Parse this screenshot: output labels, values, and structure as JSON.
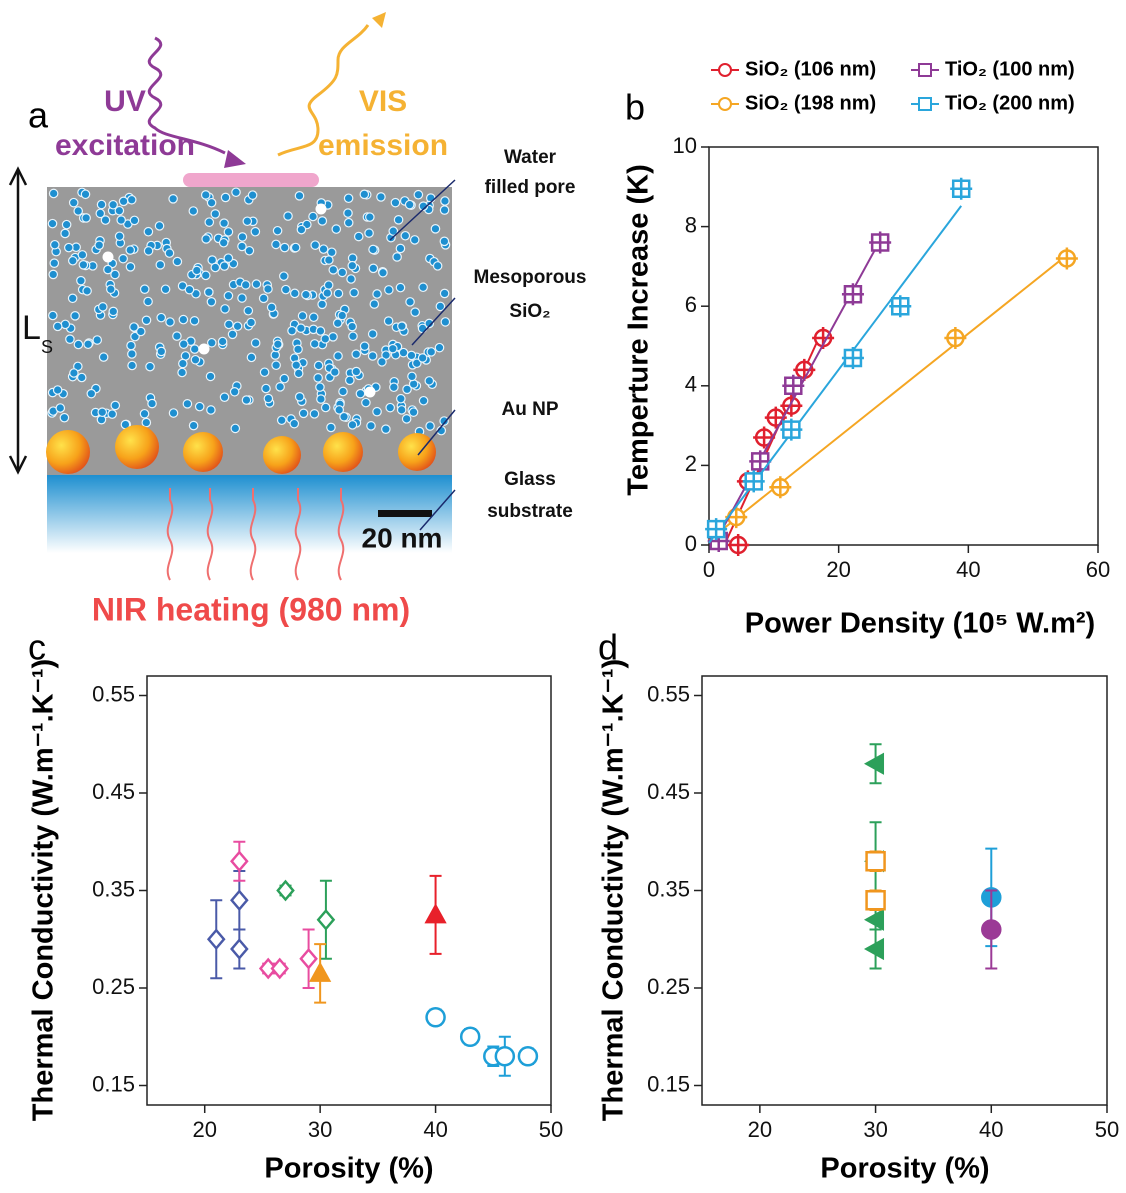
{
  "diagram": {
    "label": "a",
    "annotations": [
      "UV",
      "excitation",
      "VIS",
      "emission",
      "Water",
      "filled pore",
      "Mesoporous",
      "SiO₂",
      "Au NP",
      "Glass",
      "substrate",
      "20 nm",
      "NIR heating (980 nm)",
      "L",
      "S"
    ]
  },
  "chart_data": [
    {
      "type": "scatter",
      "label": "b",
      "x_label": "Power Density (10⁵ W.m²)",
      "y_label": "Temperture Increase (K)",
      "xlim": [
        0,
        60
      ],
      "xticks": [
        0,
        20,
        40,
        60
      ],
      "ylim": [
        0,
        10
      ],
      "yticks": [
        0,
        2,
        4,
        6,
        8,
        10
      ],
      "legend": "top",
      "fit": true,
      "series": [
        {
          "name": "SiO₂ (106 nm)",
          "color": "#e0202e",
          "marker": "circle",
          "filled": false,
          "x": [
            4.5,
            6,
            8.5,
            10.3,
            12.7,
            14.7,
            17.6
          ],
          "values": [
            0,
            1.6,
            2.7,
            3.2,
            3.5,
            4.4,
            5.2
          ]
        },
        {
          "name": "SiO₂ (198 nm)",
          "color": "#f5a623",
          "marker": "circle",
          "filled": false,
          "x": [
            4.2,
            11,
            38,
            55.2
          ],
          "values": [
            0.7,
            1.45,
            5.2,
            7.2
          ]
        },
        {
          "name": "TiO₂ (100 nm)",
          "color": "#8e3a96",
          "marker": "square",
          "filled": false,
          "x": [
            1.5,
            7.9,
            13,
            22.2,
            26.4
          ],
          "values": [
            0.1,
            2.1,
            4.0,
            6.3,
            7.6
          ]
        },
        {
          "name": "TiO₂ (200 nm)",
          "color": "#2aa6dc",
          "marker": "square",
          "filled": false,
          "x": [
            1.1,
            6.9,
            12.7,
            22.2,
            29.5,
            38.9
          ],
          "values": [
            0.4,
            1.6,
            2.9,
            4.7,
            6.0,
            8.95
          ]
        }
      ]
    },
    {
      "type": "scatter",
      "label": "c",
      "x_label": "Porosity (%)",
      "y_label": "Thermal Conductivity (W.m⁻¹.K⁻¹)",
      "xlim": [
        15,
        50
      ],
      "xticks": [
        20,
        30,
        40,
        50
      ],
      "ylim": [
        0.13,
        0.57
      ],
      "yticks": [
        0.15,
        0.25,
        0.35,
        0.45,
        0.55
      ],
      "series": [
        {
          "color": "#4a5aa8",
          "marker": "diamond",
          "filled": false,
          "x": [
            21,
            23,
            23
          ],
          "values": [
            0.3,
            0.34,
            0.29
          ],
          "errors": [
            0.04,
            0.03,
            0.02
          ]
        },
        {
          "color": "#e84ca0",
          "marker": "diamond",
          "filled": false,
          "x": [
            23,
            25.5,
            26.5,
            29
          ],
          "values": [
            0.38,
            0.27,
            0.27,
            0.28
          ],
          "errors": [
            0.02,
            0.005,
            0.005,
            0.03
          ]
        },
        {
          "color": "#2ca05a",
          "marker": "diamond",
          "filled": false,
          "x": [
            27,
            30.5
          ],
          "values": [
            0.35,
            0.32
          ],
          "errors": [
            0.005,
            0.04
          ]
        },
        {
          "color": "#f0961e",
          "marker": "triangle",
          "filled": true,
          "x": [
            30
          ],
          "values": [
            0.265
          ],
          "errors": [
            0.03
          ]
        },
        {
          "color": "#e8202a",
          "marker": "triangle",
          "filled": true,
          "x": [
            40
          ],
          "values": [
            0.325
          ],
          "errors": [
            0.04
          ]
        },
        {
          "color": "#1e9fd8",
          "marker": "circle",
          "filled": false,
          "x": [
            40,
            43,
            45,
            46,
            48
          ],
          "values": [
            0.22,
            0.2,
            0.18,
            0.18,
            0.18
          ],
          "errors": [
            0.008,
            0.008,
            0.01,
            0.02,
            0.008
          ]
        }
      ]
    },
    {
      "type": "scatter",
      "label": "d",
      "x_label": "Porosity (%)",
      "y_label": "Thermal Conductivity (W.m⁻¹.K⁻¹)",
      "xlim": [
        15,
        50
      ],
      "xticks": [
        20,
        30,
        40,
        50
      ],
      "ylim": [
        0.13,
        0.57
      ],
      "yticks": [
        0.15,
        0.25,
        0.35,
        0.45,
        0.55
      ],
      "series": [
        {
          "color": "#2ca05a",
          "marker": "triangle-left",
          "filled": true,
          "x": [
            30,
            30,
            30,
            30
          ],
          "values": [
            0.48,
            0.38,
            0.32,
            0.29
          ],
          "errors": [
            0.02,
            0.04,
            0.01,
            0.02
          ]
        },
        {
          "color": "#f0961e",
          "marker": "square",
          "filled": false,
          "x": [
            30,
            30
          ],
          "values": [
            0.38,
            0.34
          ],
          "errors": [
            0.01,
            0.01
          ]
        },
        {
          "color": "#1e9fd8",
          "marker": "circle",
          "filled": true,
          "x": [
            40
          ],
          "values": [
            0.343
          ],
          "errors": [
            0.05
          ]
        },
        {
          "color": "#9b3a96",
          "marker": "circle",
          "filled": true,
          "x": [
            40
          ],
          "values": [
            0.31
          ],
          "errors": [
            0.04
          ]
        }
      ]
    }
  ]
}
